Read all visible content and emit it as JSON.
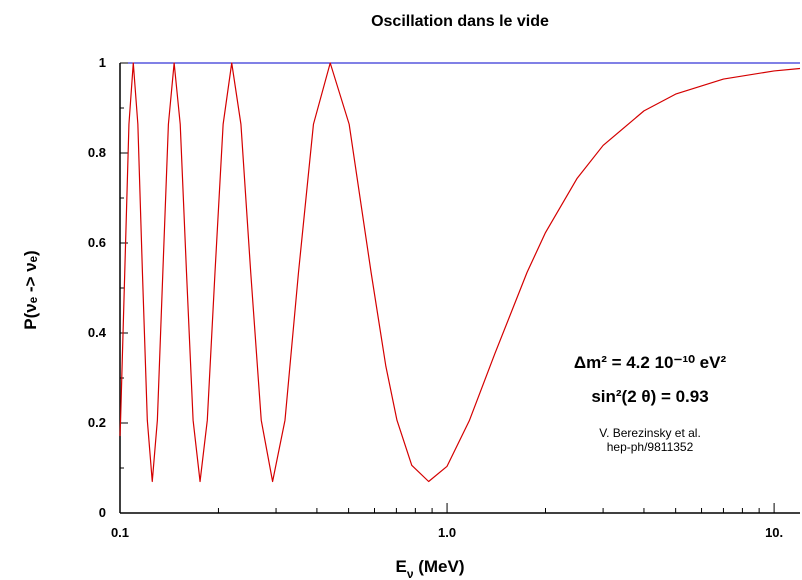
{
  "chart_data": {
    "type": "line",
    "title": "Oscillation dans le vide",
    "x_label": {
      "main": "E",
      "sub": "ν",
      "rest": " (MeV)"
    },
    "y_label": "P(νₑ -> νₑ)",
    "annotations": [
      "Δm² = 4.2 10⁻¹⁰ eV²",
      "sin²(2 θ) = 0.93",
      "V. Berezinsky et al.",
      "hep-ph/9811352"
    ],
    "x_scale": "log",
    "xlim": [
      0.1,
      12
    ],
    "ylim": [
      0,
      1
    ],
    "xticks": [
      {
        "value": 0.1,
        "label": "0.1"
      },
      {
        "value": 1,
        "label": "1.0"
      },
      {
        "value": 10,
        "label": "10."
      }
    ],
    "minor_xticks": [
      0.2,
      0.3,
      0.4,
      0.5,
      0.6,
      0.7,
      0.8,
      0.9,
      2,
      3,
      4,
      5,
      6,
      7,
      8,
      9
    ],
    "yticks": [
      0,
      0.2,
      0.4,
      0.6,
      0.8,
      1
    ],
    "minor_yticks": [
      0.1,
      0.3,
      0.5,
      0.7,
      0.9
    ],
    "series": [
      {
        "color": "#d40000",
        "x": [
          0.1,
          0.1004,
          0.1034,
          0.1065,
          0.1098,
          0.1134,
          0.1171,
          0.1212,
          0.1255,
          0.1301,
          0.1352,
          0.1406,
          0.1464,
          0.1528,
          0.1597,
          0.1673,
          0.1757,
          0.1849,
          0.1952,
          0.2067,
          0.2196,
          0.2343,
          0.251,
          0.2703,
          0.2928,
          0.3195,
          0.3514,
          0.3904,
          0.4393,
          0.502,
          0.5857,
          0.65,
          0.7028,
          0.78,
          0.8785,
          1.0,
          1.1713,
          1.4,
          1.757,
          2.0,
          2.5,
          3,
          4,
          5,
          7,
          10,
          12
        ],
        "values": [
          0.171,
          0.2062,
          0.535,
          0.8639,
          1,
          0.8639,
          0.535,
          0.2062,
          0.07,
          0.2062,
          0.535,
          0.8639,
          1,
          0.8639,
          0.535,
          0.2062,
          0.07,
          0.2062,
          0.535,
          0.8639,
          1,
          0.8639,
          0.535,
          0.2062,
          0.07,
          0.2062,
          0.535,
          0.8639,
          1,
          0.8639,
          0.535,
          0.326,
          0.2062,
          0.1059,
          0.07,
          0.1038,
          0.2062,
          0.354,
          0.535,
          0.6233,
          0.744,
          0.8168,
          0.8936,
          0.9309,
          0.9643,
          0.9824,
          0.9878
        ]
      }
    ]
  }
}
